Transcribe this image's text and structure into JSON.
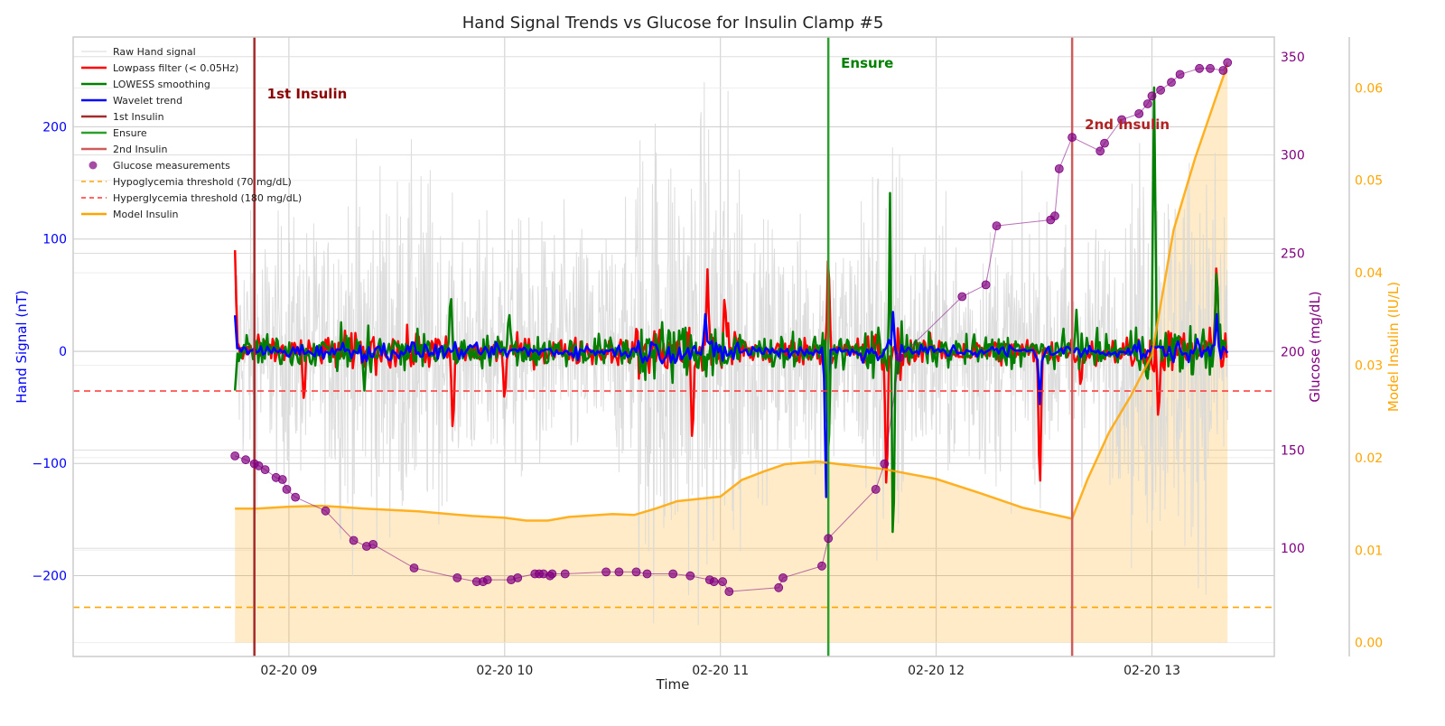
{
  "chart_data": {
    "type": "line",
    "title": "Hand Signal Trends vs Glucose for Insulin Clamp #5",
    "xlabel": "Time",
    "x_ticks": [
      "02-20 09",
      "02-20 10",
      "02-20 11",
      "02-20 12",
      "02-20 13"
    ],
    "x_range": [
      "02-20 08:00",
      "02-20 13:34"
    ],
    "grid": true,
    "legend_position": "top-left",
    "axes": {
      "hand_signal": {
        "label": "Hand Signal (nT)",
        "color": "#0000ff",
        "side": "left",
        "ylim": [
          -272,
          280
        ],
        "ticks": [
          -200,
          -100,
          0,
          100,
          200
        ],
        "tick_labels": [
          "−200",
          "−100",
          "0",
          "100",
          "200"
        ]
      },
      "glucose": {
        "label": "Glucose (mg/dL)",
        "color": "#800080",
        "side": "right",
        "ylim": [
          45,
          360
        ],
        "ticks": [
          100,
          150,
          200,
          250,
          300,
          350
        ]
      },
      "model_insulin": {
        "label": "Model Insulin (IU/L)",
        "color": "#ffa500",
        "side": "right-outer",
        "ylim": [
          -0.0015,
          0.0655
        ],
        "ticks": [
          0.0,
          0.01,
          0.02,
          0.03,
          0.04,
          0.05,
          0.06
        ],
        "tick_labels": [
          "0.00",
          "0.01",
          "0.02",
          "0.03",
          "0.04",
          "0.05",
          "0.06"
        ]
      }
    },
    "legend": [
      {
        "label": "Raw Hand signal",
        "kind": "line",
        "color": "#d9d9d9",
        "width": 1
      },
      {
        "label": "Lowpass filter (< 0.05Hz)",
        "kind": "line",
        "color": "#ff0000",
        "width": 2.5
      },
      {
        "label": "LOWESS smoothing",
        "kind": "line",
        "color": "#008000",
        "width": 2.5
      },
      {
        "label": "Wavelet trend",
        "kind": "line",
        "color": "#0000ff",
        "width": 2.5
      },
      {
        "label": "1st Insulin",
        "kind": "line",
        "color": "#a52a2a",
        "width": 2.5
      },
      {
        "label": "Ensure",
        "kind": "line",
        "color": "#2ca02c",
        "width": 2.5
      },
      {
        "label": "2nd Insulin",
        "kind": "line",
        "color": "#cd5c5c",
        "width": 2.5
      },
      {
        "label": "Glucose measurements",
        "kind": "marker",
        "color": "#800080"
      },
      {
        "label": "Hypoglycemia threshold (70 mg/dL)",
        "kind": "dashed",
        "color": "#ffa500"
      },
      {
        "label": "Hyperglycemia threshold (180 mg/dL)",
        "kind": "dashed",
        "color": "#ff3333"
      },
      {
        "label": "Model Insulin",
        "kind": "line",
        "color": "#ffa500",
        "width": 2.5
      }
    ],
    "events": [
      {
        "label": "1st Insulin",
        "time_h": 8.84,
        "color": "#a52a2a"
      },
      {
        "label": "Ensure",
        "time_h": 11.5,
        "color": "#2ca02c"
      },
      {
        "label": "2nd Insulin",
        "time_h": 12.63,
        "color": "#cd5c5c"
      }
    ],
    "thresholds": [
      {
        "name": "Hypoglycemia threshold (70 mg/dL)",
        "glucose": 70,
        "color": "#ffa500"
      },
      {
        "name": "Hyperglycemia threshold (180 mg/dL)",
        "glucose": 180,
        "color": "#ff3333"
      }
    ],
    "glucose_measurements": {
      "time_h": [
        8.75,
        8.8,
        8.84,
        8.86,
        8.89,
        8.94,
        8.97,
        8.99,
        9.03,
        9.17,
        9.3,
        9.36,
        9.39,
        9.58,
        9.78,
        9.87,
        9.9,
        9.92,
        10.03,
        10.06,
        10.14,
        10.16,
        10.18,
        10.21,
        10.22,
        10.28,
        10.47,
        10.53,
        10.61,
        10.66,
        10.78,
        10.86,
        10.95,
        10.97,
        11.01,
        11.04,
        11.27,
        11.29,
        11.47,
        11.5,
        11.72,
        11.76,
        11.83,
        12.12,
        12.23,
        12.28,
        12.53,
        12.55,
        12.57,
        12.63,
        12.76,
        12.78,
        12.86,
        12.94,
        12.98,
        13.0,
        13.04,
        13.09,
        13.13,
        13.22,
        13.27,
        13.33,
        13.35
      ],
      "glucose_mgdl": [
        147,
        145,
        143,
        142,
        140,
        136,
        135,
        130,
        126,
        119,
        104,
        101,
        102,
        90,
        85,
        83,
        83,
        84,
        84,
        85,
        87,
        87,
        87,
        86,
        87,
        87,
        88,
        88,
        88,
        87,
        87,
        86,
        84,
        83,
        83,
        78,
        80,
        85,
        91,
        105,
        130,
        143,
        197,
        228,
        234,
        264,
        267,
        269,
        293,
        309,
        302,
        306,
        318,
        321,
        326,
        330,
        333,
        337,
        341,
        344,
        344,
        343,
        347
      ]
    },
    "model_insulin": {
      "time_h": [
        8.75,
        8.85,
        9.0,
        9.15,
        9.35,
        9.6,
        9.85,
        10.0,
        10.1,
        10.2,
        10.3,
        10.5,
        10.6,
        10.7,
        10.8,
        11.0,
        11.1,
        11.2,
        11.3,
        11.45,
        11.55,
        11.75,
        12.0,
        12.2,
        12.4,
        12.63,
        12.7,
        12.8,
        12.9,
        13.0,
        13.1,
        13.2,
        13.3,
        13.35
      ],
      "insulin_iul": [
        0.0145,
        0.0145,
        0.0147,
        0.0148,
        0.0145,
        0.0142,
        0.0137,
        0.0135,
        0.0132,
        0.0132,
        0.0136,
        0.0139,
        0.0138,
        0.0145,
        0.0153,
        0.0158,
        0.0176,
        0.0185,
        0.0193,
        0.0196,
        0.0193,
        0.0188,
        0.0177,
        0.0162,
        0.0146,
        0.0134,
        0.0176,
        0.0227,
        0.0266,
        0.0311,
        0.0446,
        0.0524,
        0.0592,
        0.0625
      ]
    },
    "signal_spikes": {
      "note": "approximate extreme excursions of each filtered hand-signal series (nT); all series otherwise fluctuate near 0",
      "lowpass": {
        "time_h": [
          8.75,
          9.07,
          9.76,
          10.0,
          10.87,
          10.94,
          11.02,
          11.5,
          11.77,
          12.48,
          12.67,
          13.03,
          13.3
        ],
        "value_nt": [
          90,
          -50,
          -80,
          -48,
          -90,
          73,
          55,
          96,
          -140,
          -138,
          -35,
          -68,
          88
        ]
      },
      "lowess": {
        "time_h": [
          8.75,
          9.35,
          9.75,
          10.02,
          11.5,
          11.79,
          11.8,
          12.65,
          13.01,
          13.3
        ],
        "value_nt": [
          -35,
          -35,
          55,
          40,
          -110,
          212,
          -200,
          37,
          235,
          84
        ]
      },
      "wavelet": {
        "time_h": [
          8.75,
          10.93,
          11.49,
          11.8,
          12.48,
          13.3
        ],
        "value_nt": [
          32,
          33,
          -130,
          35,
          -47,
          33
        ]
      }
    }
  }
}
